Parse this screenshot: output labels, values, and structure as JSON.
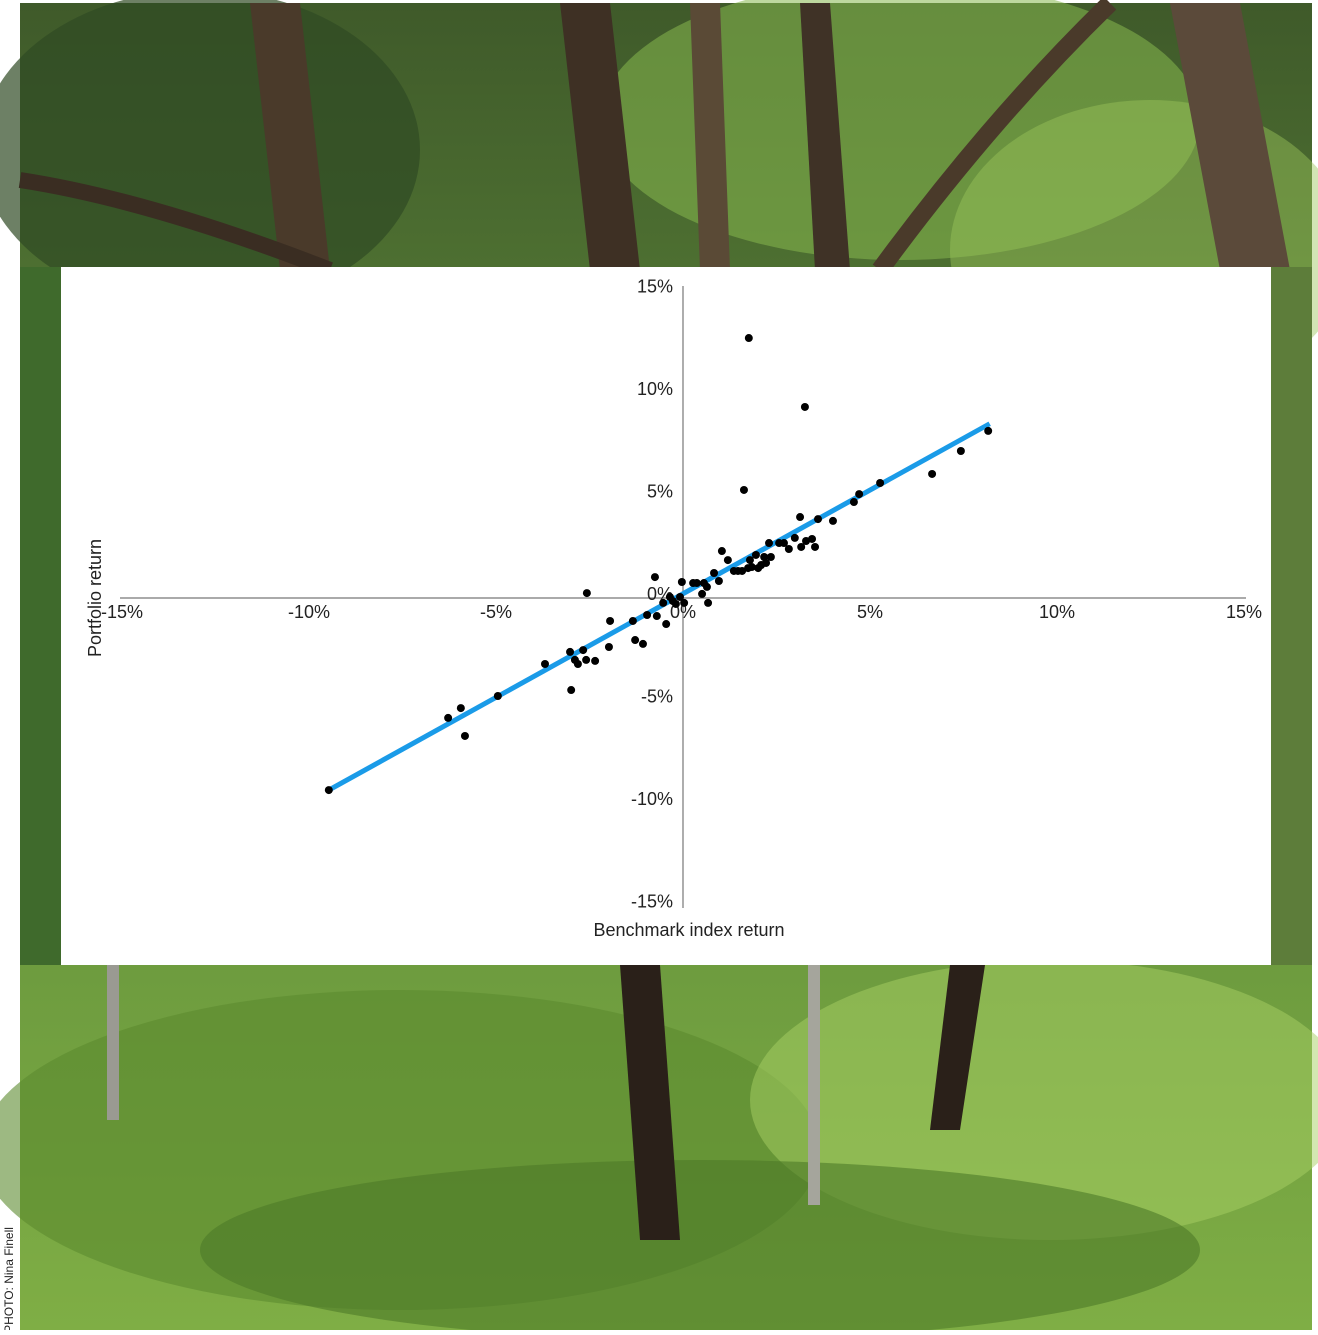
{
  "chart_data": {
    "type": "scatter",
    "x_label": "Benchmark index return",
    "y_label": "Portfolio return",
    "credit": "PHOTO: Nina Finell",
    "color": "#000000",
    "x": [
      -9.47,
      -6.28,
      -5.94,
      -5.83,
      -4.95,
      -3.69,
      -3.02,
      -2.99,
      -2.89,
      -2.81,
      -2.67,
      -2.59,
      -2.57,
      -2.35,
      -1.98,
      -1.95,
      -1.34,
      -1.28,
      -1.07,
      -0.96,
      -0.75,
      -0.7,
      -0.53,
      -0.45,
      -0.35,
      -0.27,
      -0.19,
      -0.08,
      0.03,
      -0.03,
      0.27,
      0.37,
      0.51,
      0.56,
      0.67,
      0.64,
      0.83,
      0.96,
      1.04,
      1.2,
      1.36,
      1.47,
      1.58,
      1.74,
      1.76,
      1.63,
      1.79,
      1.84,
      1.95,
      2.01,
      2.09,
      2.17,
      2.22,
      2.3,
      2.35,
      2.57,
      2.7,
      2.83,
      2.99,
      3.13,
      3.16,
      3.26,
      3.29,
      3.45,
      3.53,
      3.61,
      4.01,
      4.57,
      4.71,
      5.27,
      6.66,
      7.43,
      8.16
    ],
    "y": [
      -9.37,
      -5.85,
      -5.37,
      -6.73,
      -4.78,
      -3.22,
      -2.63,
      -4.49,
      -3.02,
      -3.22,
      -2.54,
      -3.02,
      0.24,
      -3.07,
      -2.39,
      -1.12,
      -1.12,
      -2.05,
      -2.24,
      -0.83,
      1.02,
      -0.88,
      -0.24,
      -1.27,
      0.05,
      -0.15,
      -0.29,
      0.05,
      -0.24,
      0.78,
      0.73,
      0.73,
      0.2,
      0.73,
      -0.24,
      0.54,
      1.22,
      0.83,
      2.29,
      1.85,
      1.32,
      1.32,
      1.32,
      1.46,
      12.68,
      5.27,
      1.85,
      1.51,
      2.1,
      1.46,
      1.61,
      2.0,
      1.71,
      2.68,
      2.0,
      2.68,
      2.68,
      2.39,
      2.93,
      3.95,
      2.49,
      9.32,
      2.78,
      2.88,
      2.49,
      3.85,
      3.76,
      4.68,
      5.07,
      5.61,
      6.05,
      7.17,
      8.15
    ],
    "trend_line": {
      "color": "#1a9be8",
      "x": [
        -9.5,
        8.2
      ],
      "y": [
        -9.4,
        8.5
      ]
    },
    "xlim": [
      -15,
      15
    ],
    "ylim": [
      -15,
      15
    ],
    "xticks": [
      {
        "value": -15,
        "label": "-15%"
      },
      {
        "value": -10,
        "label": "-10%"
      },
      {
        "value": -5,
        "label": "-5%"
      },
      {
        "value": 0,
        "label": "0%"
      },
      {
        "value": 5,
        "label": "5%"
      },
      {
        "value": 10,
        "label": "10%"
      },
      {
        "value": 15,
        "label": "15%"
      }
    ],
    "yticks": [
      {
        "value": -15,
        "label": "-15%"
      },
      {
        "value": -10,
        "label": "-10%"
      },
      {
        "value": -5,
        "label": "-5%"
      },
      {
        "value": 0,
        "label": "0%"
      },
      {
        "value": 5,
        "label": "5%"
      },
      {
        "value": 10,
        "label": "10%"
      },
      {
        "value": 15,
        "label": "15%"
      }
    ]
  }
}
